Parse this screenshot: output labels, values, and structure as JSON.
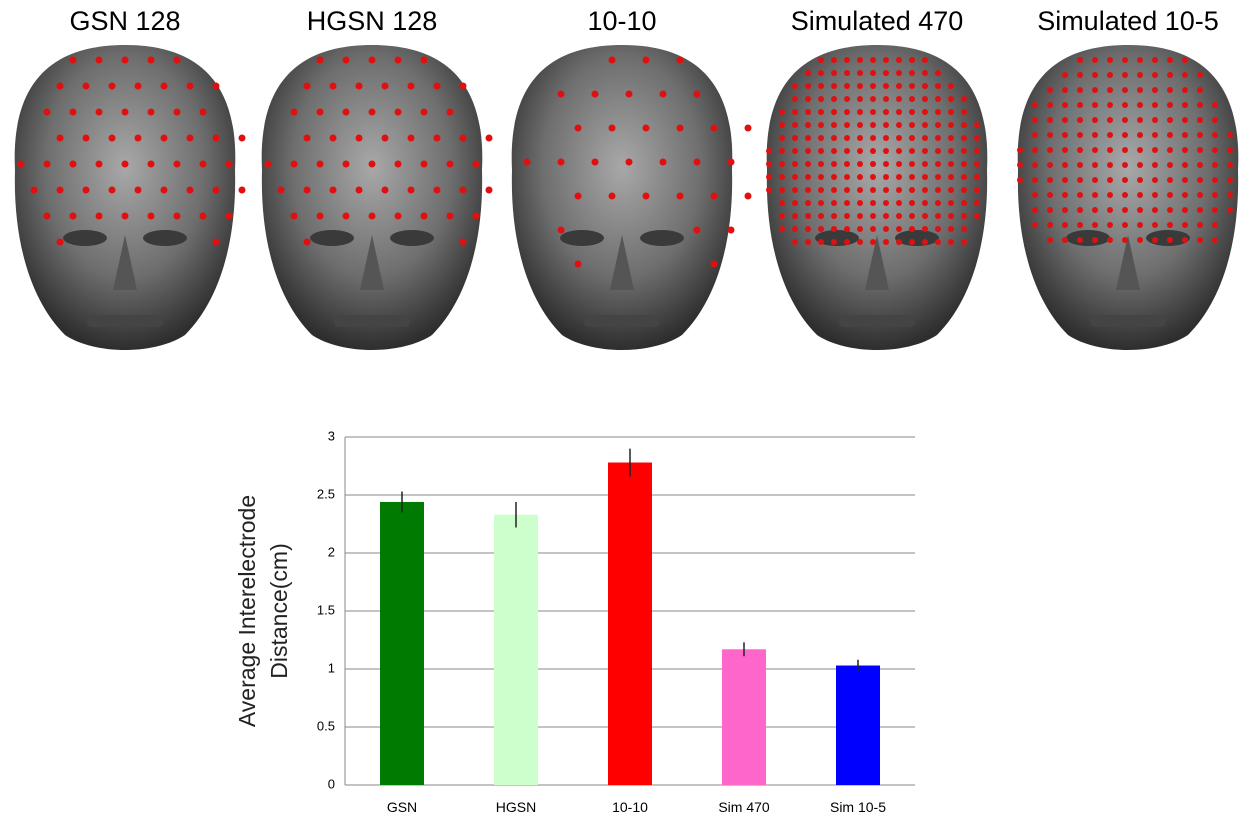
{
  "head_labels": [
    "GSN 128",
    "HGSN 128",
    "10-10",
    "Simulated 470",
    "Simulated 10-5"
  ],
  "chart_data": {
    "type": "bar",
    "ylabel": [
      "Average Interelectrode",
      "Distance(cm)"
    ],
    "categories": [
      "GSN",
      "HGSN",
      "10-10",
      "Sim 470",
      "Sim 10-5"
    ],
    "values": [
      2.44,
      2.33,
      2.78,
      1.17,
      1.03
    ],
    "errors": [
      0.09,
      0.11,
      0.12,
      0.06,
      0.05
    ],
    "colors": [
      "#007a00",
      "#ccffcc",
      "#ff0000",
      "#ff66cc",
      "#0000ff"
    ],
    "ylim": [
      0,
      3
    ],
    "yticks": [
      0,
      0.5,
      1,
      1.5,
      2,
      2.5,
      3
    ],
    "grid": true
  }
}
